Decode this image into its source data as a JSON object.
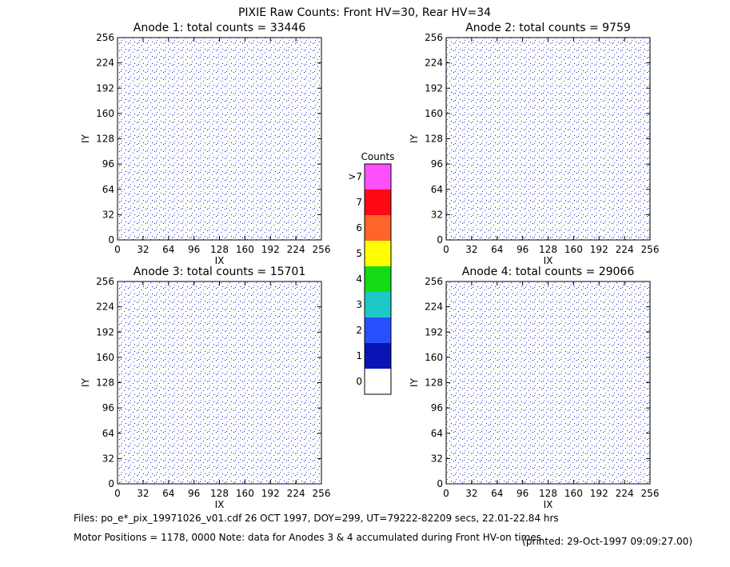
{
  "title": "PIXIE Raw Counts:  Front HV=30, Rear HV=34",
  "chart_data": [
    {
      "type": "heatmap",
      "title": "Anode 1: total counts = 33446",
      "x_label": "IX",
      "y_label": "IY",
      "xlim": [
        0,
        256
      ],
      "ylim": [
        0,
        256
      ],
      "xticks": [
        0,
        32,
        64,
        96,
        128,
        160,
        192,
        224,
        256
      ],
      "yticks": [
        0,
        32,
        64,
        96,
        128,
        160,
        192,
        224,
        256
      ]
    },
    {
      "type": "heatmap",
      "title": "Anode 2: total counts = 9759",
      "x_label": "IX",
      "y_label": "IY",
      "xlim": [
        0,
        256
      ],
      "ylim": [
        0,
        256
      ],
      "xticks": [
        0,
        32,
        64,
        96,
        128,
        160,
        192,
        224,
        256
      ],
      "yticks": [
        0,
        32,
        64,
        96,
        128,
        160,
        192,
        224,
        256
      ]
    },
    {
      "type": "heatmap",
      "title": "Anode 3: total counts = 15701",
      "x_label": "IX",
      "y_label": "IY",
      "xlim": [
        0,
        256
      ],
      "ylim": [
        0,
        256
      ],
      "xticks": [
        0,
        32,
        64,
        96,
        128,
        160,
        192,
        224,
        256
      ],
      "yticks": [
        0,
        32,
        64,
        96,
        128,
        160,
        192,
        224,
        256
      ]
    },
    {
      "type": "heatmap",
      "title": "Anode 4: total counts = 29066",
      "x_label": "IX",
      "y_label": "IY",
      "xlim": [
        0,
        256
      ],
      "ylim": [
        0,
        256
      ],
      "xticks": [
        0,
        32,
        64,
        96,
        128,
        160,
        192,
        224,
        256
      ],
      "yticks": [
        0,
        32,
        64,
        96,
        128,
        160,
        192,
        224,
        256
      ]
    }
  ],
  "colorbar": {
    "title": "Counts",
    "labels": [
      "0",
      "1",
      "2",
      "3",
      "4",
      "5",
      "6",
      "7",
      ">7"
    ],
    "colors": [
      "#ffffff",
      "#0a14b4",
      "#2850ff",
      "#1ec8c8",
      "#14dc14",
      "#ffff00",
      "#ff6428",
      "#ff0a14",
      "#ff50ff"
    ]
  },
  "footer": {
    "files": "Files: po_e*_pix_19971026_v01.cdf    26 OCT 1997, DOY=299, UT=79222-82209 secs, 22.01-22.84 hrs",
    "motor": "Motor Positions = 1178, 0000    Note: data for Anodes 3 & 4 accumulated during Front HV-on times",
    "printed": "(printed: 29-Oct-1997 09:09:27.00)"
  }
}
